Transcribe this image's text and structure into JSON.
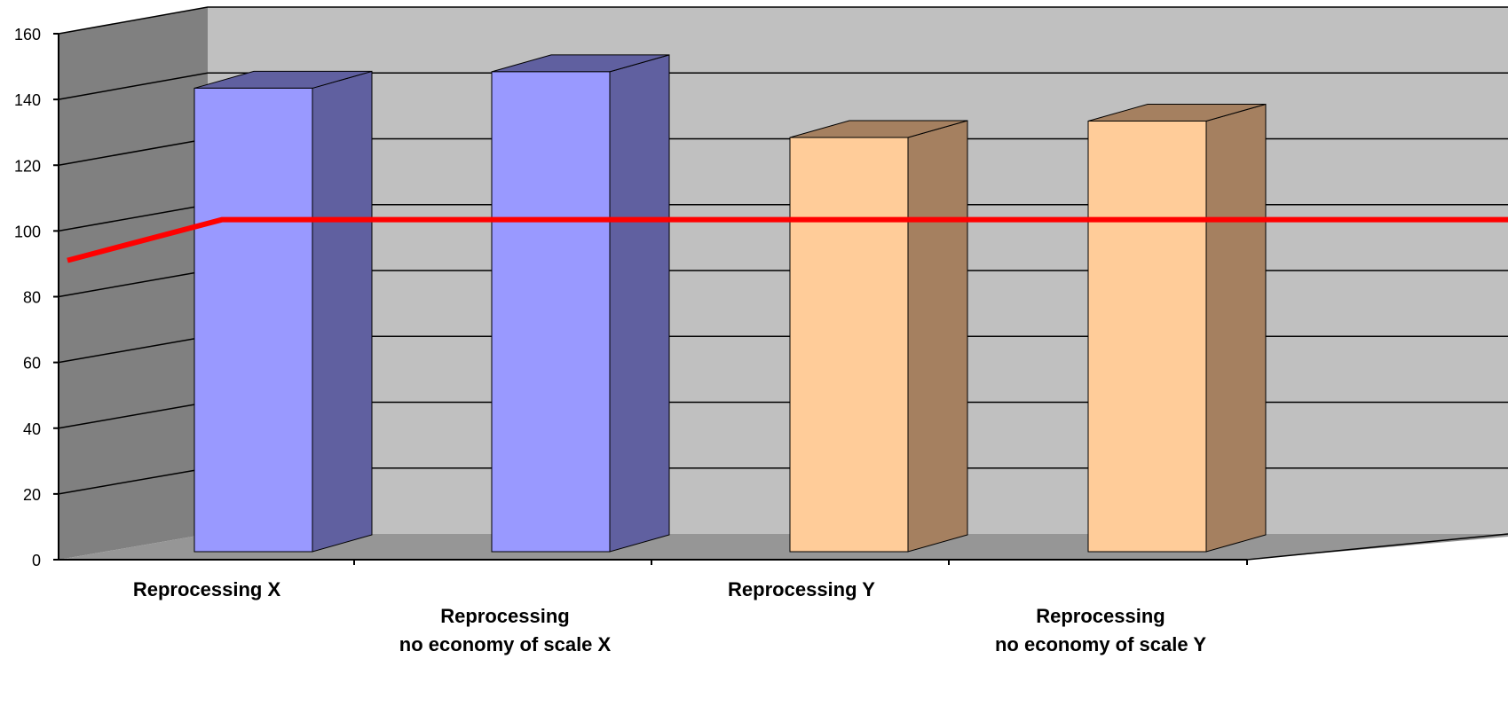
{
  "chart_data": {
    "type": "bar",
    "style": "3d-column",
    "categories": [
      [
        "Reprocessing X"
      ],
      [
        "Reprocessing",
        "no economy of scale X"
      ],
      [
        "Reprocessing Y"
      ],
      [
        "Reprocessing",
        "no economy of scale Y"
      ]
    ],
    "values": [
      141,
      146,
      126,
      131
    ],
    "reference_line": {
      "value": 101,
      "start_value": 94,
      "color": "#ff0000"
    },
    "ylim": [
      0,
      160
    ],
    "yticks": [
      "0",
      "20",
      "40",
      "60",
      "80",
      "100",
      "120",
      "140",
      "160"
    ],
    "grid": true,
    "legend": "none",
    "colors": {
      "bar_x_front": "#9999ff",
      "bar_x_side": "#6060a0",
      "bar_y_front": "#ffcc99",
      "bar_y_side": "#a58060",
      "back_wall": "#c0c0c0",
      "side_wall": "#808080",
      "floor": "#969696",
      "line": "#ff0000"
    }
  }
}
